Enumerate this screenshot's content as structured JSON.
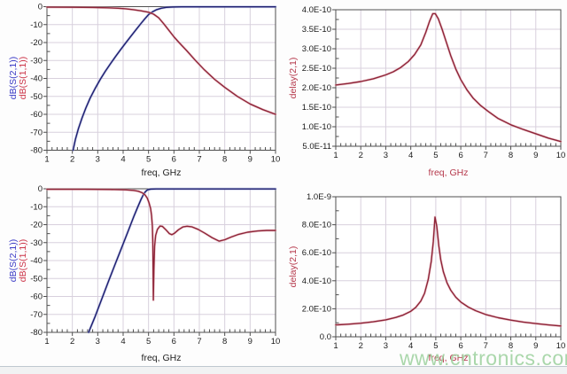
{
  "page": {
    "watermark": "www.cntronics.com"
  },
  "colors": {
    "blue": {
      "core": "#1d1d6e",
      "halo": "#98a1d6"
    },
    "red": {
      "core": "#8d2438",
      "halo": "#e3a6ae"
    },
    "grid": "#d8d0dd",
    "axis": "#4f4f4f",
    "tick_text": "#1b1b1b",
    "watermark": "#9fd2a0"
  },
  "chart_data": [
    {
      "id": "sparams-a",
      "type": "line",
      "title": "",
      "xlabel": "freq, GHz",
      "xlabel_style": "dark",
      "ylabels": [
        {
          "text": "dB(S(2,1))",
          "style": "blue"
        },
        {
          "text": "dB(S(1,1))",
          "style": "red"
        }
      ],
      "xlim": [
        1,
        10
      ],
      "ylim": [
        -80,
        0
      ],
      "xticks": [
        1,
        2,
        3,
        4,
        5,
        6,
        7,
        8,
        9,
        10
      ],
      "yticks": [
        {
          "v": 0,
          "label": "0"
        },
        {
          "v": -10,
          "label": "-10"
        },
        {
          "v": -20,
          "label": "-20"
        },
        {
          "v": -30,
          "label": "-30"
        },
        {
          "v": -40,
          "label": "-40"
        },
        {
          "v": -50,
          "label": "-50"
        },
        {
          "v": -60,
          "label": "-60"
        },
        {
          "v": -70,
          "label": "-70"
        },
        {
          "v": -80,
          "label": "-80"
        }
      ],
      "grid": true,
      "legend": "none",
      "series": [
        {
          "key": "s21",
          "name": "dB(S(2,1))",
          "color": "blue",
          "points": [
            [
              2.03,
              -80
            ],
            [
              2.12,
              -74
            ],
            [
              2.24,
              -68
            ],
            [
              2.38,
              -62
            ],
            [
              2.53,
              -56.5
            ],
            [
              2.7,
              -51
            ],
            [
              2.9,
              -45.5
            ],
            [
              3.1,
              -40.5
            ],
            [
              3.3,
              -36
            ],
            [
              3.5,
              -31.8
            ],
            [
              3.7,
              -27.8
            ],
            [
              3.9,
              -24
            ],
            [
              4.1,
              -20.2
            ],
            [
              4.3,
              -16.6
            ],
            [
              4.5,
              -13
            ],
            [
              4.7,
              -9.4
            ],
            [
              4.85,
              -6.8
            ],
            [
              5,
              -4.4
            ],
            [
              5.15,
              -2.9
            ],
            [
              5.3,
              -1.8
            ],
            [
              5.5,
              -0.9
            ],
            [
              5.7,
              -0.4
            ],
            [
              5.95,
              -0.2
            ],
            [
              6.3,
              -0.12
            ],
            [
              10,
              -0.12
            ]
          ]
        },
        {
          "key": "s11",
          "name": "dB(S(1,1))",
          "color": "red",
          "points": [
            [
              1,
              -0.3
            ],
            [
              2,
              -0.35
            ],
            [
              2.8,
              -0.45
            ],
            [
              3.4,
              -0.65
            ],
            [
              3.8,
              -0.9
            ],
            [
              4.1,
              -1.2
            ],
            [
              4.4,
              -1.7
            ],
            [
              4.7,
              -2.3
            ],
            [
              5,
              -3.1
            ],
            [
              5.2,
              -4.2
            ],
            [
              5.4,
              -6.2
            ],
            [
              5.6,
              -9.6
            ],
            [
              5.8,
              -13.2
            ],
            [
              6,
              -16.8
            ],
            [
              6.2,
              -20
            ],
            [
              6.5,
              -24.5
            ],
            [
              6.85,
              -30
            ],
            [
              7.2,
              -35.2
            ],
            [
              7.6,
              -40.5
            ],
            [
              8,
              -45
            ],
            [
              8.5,
              -50
            ],
            [
              9,
              -54.2
            ],
            [
              9.5,
              -57.4
            ],
            [
              10,
              -60
            ]
          ]
        }
      ]
    },
    {
      "id": "delay-a",
      "type": "line",
      "title": "",
      "xlabel": "freq, GHz",
      "xlabel_style": "axisred",
      "ylabels": [
        {
          "text": "delay(2,1)",
          "style": "axisred"
        }
      ],
      "xlim": [
        1,
        10
      ],
      "ylim": [
        5e-11,
        4e-10
      ],
      "xticks": [
        1,
        2,
        3,
        4,
        5,
        6,
        7,
        8,
        9,
        10
      ],
      "yticks": [
        {
          "v": 4e-10,
          "label": "4.0E-10"
        },
        {
          "v": 3.5e-10,
          "label": "3.5E-10"
        },
        {
          "v": 3e-10,
          "label": "3.0E-10"
        },
        {
          "v": 2.5e-10,
          "label": "2.5E-10"
        },
        {
          "v": 2e-10,
          "label": "2.0E-10"
        },
        {
          "v": 1.5e-10,
          "label": "1.5E-10"
        },
        {
          "v": 1e-10,
          "label": "1.0E-10"
        },
        {
          "v": 5e-11,
          "label": "5.0E-11"
        }
      ],
      "grid": true,
      "legend": "none",
      "series": [
        {
          "key": "delay21",
          "name": "delay(2,1)",
          "color": "red",
          "points": [
            [
              1,
              2.07e-10
            ],
            [
              1.5,
              2.11e-10
            ],
            [
              2,
              2.16e-10
            ],
            [
              2.5,
              2.23e-10
            ],
            [
              3,
              2.33e-10
            ],
            [
              3.3,
              2.41e-10
            ],
            [
              3.6,
              2.52e-10
            ],
            [
              3.9,
              2.67e-10
            ],
            [
              4.15,
              2.85e-10
            ],
            [
              4.4,
              3.1e-10
            ],
            [
              4.6,
              3.42e-10
            ],
            [
              4.75,
              3.7e-10
            ],
            [
              4.88,
              3.9e-10
            ],
            [
              4.98,
              3.9e-10
            ],
            [
              5.1,
              3.77e-10
            ],
            [
              5.25,
              3.51e-10
            ],
            [
              5.4,
              3.21e-10
            ],
            [
              5.6,
              2.82e-10
            ],
            [
              5.8,
              2.48e-10
            ],
            [
              6,
              2.21e-10
            ],
            [
              6.25,
              1.94e-10
            ],
            [
              6.5,
              1.73e-10
            ],
            [
              6.8,
              1.54e-10
            ],
            [
              7.1,
              1.39e-10
            ],
            [
              7.5,
              1.21e-10
            ],
            [
              8,
              1.05e-10
            ],
            [
              8.5,
              9.3e-11
            ],
            [
              9,
              8.2e-11
            ],
            [
              9.5,
              7.1e-11
            ],
            [
              10,
              6.2e-11
            ]
          ]
        }
      ]
    },
    {
      "id": "sparams-b",
      "type": "line",
      "title": "",
      "xlabel": "freq, GHz",
      "xlabel_style": "dark",
      "ylabels": [
        {
          "text": "dB(S(2,1))",
          "style": "blue"
        },
        {
          "text": "dB(S(1,1))",
          "style": "red"
        }
      ],
      "xlim": [
        1,
        10
      ],
      "ylim": [
        -80,
        0
      ],
      "xticks": [
        1,
        2,
        3,
        4,
        5,
        6,
        7,
        8,
        9,
        10
      ],
      "yticks": [
        {
          "v": 0,
          "label": "0"
        },
        {
          "v": -10,
          "label": "-10"
        },
        {
          "v": -20,
          "label": "-20"
        },
        {
          "v": -30,
          "label": "-30"
        },
        {
          "v": -40,
          "label": "-40"
        },
        {
          "v": -50,
          "label": "-50"
        },
        {
          "v": -60,
          "label": "-60"
        },
        {
          "v": -70,
          "label": "-70"
        },
        {
          "v": -80,
          "label": "-80"
        }
      ],
      "grid": true,
      "legend": "none",
      "series": [
        {
          "key": "s21",
          "name": "dB(S(2,1))",
          "color": "blue",
          "points": [
            [
              2.64,
              -80
            ],
            [
              2.9,
              -71
            ],
            [
              3.17,
              -61
            ],
            [
              3.44,
              -51
            ],
            [
              3.7,
              -41.5
            ],
            [
              3.95,
              -32.5
            ],
            [
              4.2,
              -23.5
            ],
            [
              4.42,
              -15.5
            ],
            [
              4.58,
              -10
            ],
            [
              4.7,
              -6
            ],
            [
              4.8,
              -3.2
            ],
            [
              4.88,
              -1.6
            ],
            [
              4.96,
              -0.6
            ],
            [
              5.08,
              -0.2
            ],
            [
              5.3,
              -0.12
            ],
            [
              10,
              -0.12
            ]
          ]
        },
        {
          "key": "s11",
          "name": "dB(S(1,1))",
          "color": "red",
          "points": [
            [
              1,
              -0.3
            ],
            [
              2.5,
              -0.3
            ],
            [
              3.5,
              -0.4
            ],
            [
              4.1,
              -0.6
            ],
            [
              4.4,
              -0.9
            ],
            [
              4.6,
              -1.4
            ],
            [
              4.75,
              -2.2
            ],
            [
              4.86,
              -3.4
            ],
            [
              4.95,
              -5.2
            ],
            [
              5.02,
              -7.8
            ],
            [
              5.08,
              -11
            ],
            [
              5.12,
              -15
            ],
            [
              5.15,
              -21
            ],
            [
              5.17,
              -30
            ],
            [
              5.18,
              -45
            ],
            [
              5.19,
              -62
            ],
            [
              5.21,
              -45
            ],
            [
              5.24,
              -32
            ],
            [
              5.28,
              -26
            ],
            [
              5.35,
              -22.6
            ],
            [
              5.45,
              -20.8
            ],
            [
              5.55,
              -21
            ],
            [
              5.68,
              -22.8
            ],
            [
              5.82,
              -25
            ],
            [
              5.92,
              -25.6
            ],
            [
              6.02,
              -24.8
            ],
            [
              6.18,
              -22.8
            ],
            [
              6.35,
              -21.3
            ],
            [
              6.52,
              -20.9
            ],
            [
              6.7,
              -21.2
            ],
            [
              6.95,
              -22.6
            ],
            [
              7.2,
              -24.6
            ],
            [
              7.5,
              -27.2
            ],
            [
              7.78,
              -29.2
            ],
            [
              8,
              -28.4
            ],
            [
              8.25,
              -26.9
            ],
            [
              8.55,
              -25.4
            ],
            [
              8.9,
              -24.2
            ],
            [
              9.3,
              -23.5
            ],
            [
              9.65,
              -23.2
            ],
            [
              10,
              -23.2
            ]
          ]
        }
      ]
    },
    {
      "id": "delay-b",
      "type": "line",
      "title": "",
      "xlabel": "freq, GHz",
      "xlabel_style": "axisred",
      "ylabels": [
        {
          "text": "delay(2,1)",
          "style": "axisred"
        }
      ],
      "xlim": [
        1,
        10
      ],
      "ylim": [
        0,
        1e-09
      ],
      "xticks": [
        1,
        2,
        3,
        4,
        5,
        6,
        7,
        8,
        9,
        10
      ],
      "yticks": [
        {
          "v": 1e-09,
          "label": "1.0E-9"
        },
        {
          "v": 8e-10,
          "label": "8.0E-10"
        },
        {
          "v": 6e-10,
          "label": "6.0E-10"
        },
        {
          "v": 4e-10,
          "label": "4.0E-10"
        },
        {
          "v": 2e-10,
          "label": "2.0E-10"
        },
        {
          "v": 0,
          "label": "0.0"
        }
      ],
      "grid": true,
      "legend": "none",
      "series": [
        {
          "key": "delay21",
          "name": "delay(2,1)",
          "color": "red",
          "points": [
            [
              1,
              8.5e-11
            ],
            [
              1.5,
              9e-11
            ],
            [
              2,
              9.7e-11
            ],
            [
              2.5,
              1.07e-10
            ],
            [
              3,
              1.21e-10
            ],
            [
              3.4,
              1.38e-10
            ],
            [
              3.7,
              1.56e-10
            ],
            [
              4,
              1.82e-10
            ],
            [
              4.2,
              2.1e-10
            ],
            [
              4.4,
              2.55e-10
            ],
            [
              4.55,
              3.1e-10
            ],
            [
              4.7,
              4.1e-10
            ],
            [
              4.82,
              5.4e-10
            ],
            [
              4.9,
              6.8e-10
            ],
            [
              4.97,
              8.55e-10
            ],
            [
              5.04,
              7.9e-10
            ],
            [
              5.12,
              6.5e-10
            ],
            [
              5.2,
              5.5e-10
            ],
            [
              5.3,
              4.65e-10
            ],
            [
              5.45,
              3.85e-10
            ],
            [
              5.6,
              3.32e-10
            ],
            [
              5.8,
              2.82e-10
            ],
            [
              6,
              2.48e-10
            ],
            [
              6.3,
              2.12e-10
            ],
            [
              6.6,
              1.86e-10
            ],
            [
              7,
              1.59e-10
            ],
            [
              7.5,
              1.36e-10
            ],
            [
              8,
              1.19e-10
            ],
            [
              8.5,
              1.05e-10
            ],
            [
              9,
              9.4e-11
            ],
            [
              9.5,
              8.5e-11
            ],
            [
              10,
              7.7e-11
            ]
          ]
        }
      ]
    }
  ]
}
